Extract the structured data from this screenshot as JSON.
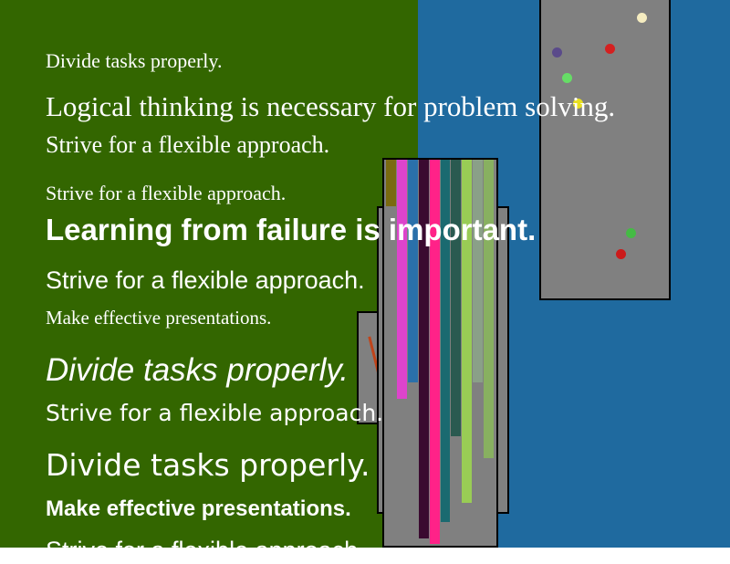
{
  "colors": {
    "left_background": "#336600",
    "right_background": "#1f6a9f",
    "panel_fill": "#808080"
  },
  "lines": [
    "Divide tasks properly.",
    "Logical thinking is necessary for problem solving.",
    "Strive for a flexible approach.",
    "Strive for a flexible approach.",
    "Learning from failure is important.",
    "Strive for a flexible approach.",
    "Make effective presentations.",
    "Divide tasks properly.",
    "Strive for a flexible approach.",
    "Divide tasks properly.",
    "Make effective presentations.",
    "Strive for a flexible approach."
  ],
  "dot_colors": [
    "#f5ecc0",
    "#5a4a8a",
    "#d42020",
    "#66dd66",
    "#e8e020",
    "#44bb44",
    "#cc1a1a"
  ],
  "stripe_colors": [
    "#7a6a10",
    "#dd44cc",
    "#2a70aa",
    "#3a0a30",
    "#ff2288",
    "#1a6a70",
    "#2a5a50",
    "#99cc55",
    "#8aa088",
    "#88b060"
  ]
}
